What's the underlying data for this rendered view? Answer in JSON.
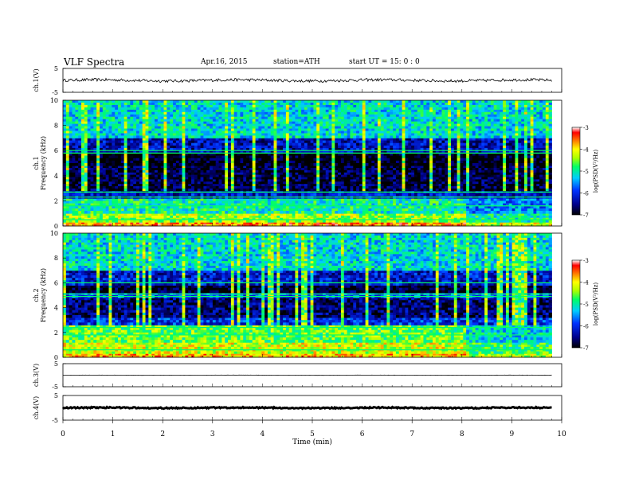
{
  "header": {
    "title": "VLF  Spectra",
    "date": "Apr.16, 2015",
    "station": "station=ATH",
    "start": "start  UT  =    15: 0   : 0"
  },
  "chart_data": [
    {
      "type": "line",
      "panel": "ch1-waveform",
      "ylabel": "ch.1(V)",
      "ylim": [
        -5,
        5
      ],
      "yticks": [
        "5",
        "-5"
      ],
      "baseline_value": 0,
      "noise_amplitude": 0.6
    },
    {
      "type": "heatmap",
      "panel": "ch1-spectrogram",
      "ylabel": "ch.1\nFrequency (kHz)",
      "ylim": [
        0,
        10
      ],
      "yticks": [
        "0",
        "2",
        "4",
        "6",
        "8",
        "10"
      ],
      "colorbar": {
        "label": "log(PSD(V²/Hz)",
        "ticks": [
          "-3",
          "-4",
          "-5",
          "-6",
          "-7"
        ],
        "range": [
          -7,
          -3
        ]
      },
      "bands_khz": [
        {
          "from": 0,
          "to": 0.3,
          "logpsd": -3.6
        },
        {
          "from": 0.3,
          "to": 1.0,
          "logpsd": -4.4
        },
        {
          "from": 1.0,
          "to": 2.2,
          "logpsd": -5.0
        },
        {
          "from": 2.2,
          "to": 2.8,
          "logpsd": -6.2
        },
        {
          "from": 2.8,
          "to": 4.8,
          "logpsd": -6.8
        },
        {
          "from": 4.8,
          "to": 5.8,
          "logpsd": -7.0
        },
        {
          "from": 5.8,
          "to": 7.0,
          "logpsd": -6.3
        },
        {
          "from": 7.0,
          "to": 10.0,
          "logpsd": -5.2
        }
      ],
      "tones_khz": [
        0.5,
        1.6,
        2.3,
        2.7,
        5.8,
        6.0
      ]
    },
    {
      "type": "heatmap",
      "panel": "ch2-spectrogram",
      "ylabel": "ch.2\nFrequency (kHz)",
      "ylim": [
        0,
        10
      ],
      "yticks": [
        "0",
        "2",
        "4",
        "6",
        "8",
        "10"
      ],
      "colorbar": {
        "label": "log(PSD(V²/Hz)",
        "ticks": [
          "-3",
          "-4",
          "-5",
          "-6",
          "-7"
        ],
        "range": [
          -7,
          -3
        ]
      },
      "bands_khz": [
        {
          "from": 0,
          "to": 0.3,
          "logpsd": -3.8
        },
        {
          "from": 0.3,
          "to": 1.2,
          "logpsd": -4.2
        },
        {
          "from": 1.2,
          "to": 2.6,
          "logpsd": -4.6
        },
        {
          "from": 2.6,
          "to": 3.2,
          "logpsd": -6.0
        },
        {
          "from": 3.2,
          "to": 4.8,
          "logpsd": -6.6
        },
        {
          "from": 4.8,
          "to": 5.2,
          "logpsd": -5.8
        },
        {
          "from": 5.2,
          "to": 5.8,
          "logpsd": -6.9
        },
        {
          "from": 5.8,
          "to": 7.0,
          "logpsd": -6.2
        },
        {
          "from": 7.0,
          "to": 10.0,
          "logpsd": -5.2
        }
      ],
      "tones_khz": [
        0.6,
        1.8,
        2.4,
        4.9,
        5.1,
        6.0
      ]
    },
    {
      "type": "line",
      "panel": "ch3-waveform",
      "ylabel": "ch.3(V)",
      "ylim": [
        -5,
        5
      ],
      "yticks": [
        "5",
        "-5"
      ],
      "baseline_value": 0,
      "noise_amplitude": 0.05
    },
    {
      "type": "line",
      "panel": "ch4-waveform",
      "ylabel": "ch.4(V)",
      "ylim": [
        -5,
        5
      ],
      "yticks": [
        "5",
        "-5"
      ],
      "baseline_value": 0,
      "noise_amplitude": 0.25
    }
  ],
  "xaxis": {
    "label": "Time  (min)",
    "xlim": [
      0,
      10
    ],
    "ticks": [
      "0",
      "1",
      "2",
      "3",
      "4",
      "5",
      "6",
      "7",
      "8",
      "9",
      "10"
    ],
    "data_end_min": 9.8
  },
  "colorscale": [
    "#000000",
    "#00008b",
    "#0033ff",
    "#00ccff",
    "#00ff66",
    "#aaff00",
    "#ffff00",
    "#ff7700",
    "#ff0000",
    "#ffffff"
  ]
}
